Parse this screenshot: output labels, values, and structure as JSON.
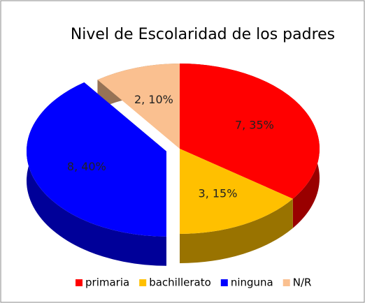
{
  "chart_data": {
    "type": "pie",
    "title": "Nivel de Escolaridad de los padres",
    "categories": [
      "primaria",
      "bachillerato",
      "ninguna",
      "N/R"
    ],
    "values": [
      35,
      15,
      40,
      10
    ],
    "value_labels": [
      "7, 35%",
      "3, 15%",
      "8, 40%",
      "2, 10%"
    ],
    "colors": [
      "#ff0000",
      "#ffc000",
      "#0000ff",
      "#fac090"
    ],
    "exploded": [
      false,
      false,
      true,
      false
    ],
    "legend": "bottom"
  }
}
